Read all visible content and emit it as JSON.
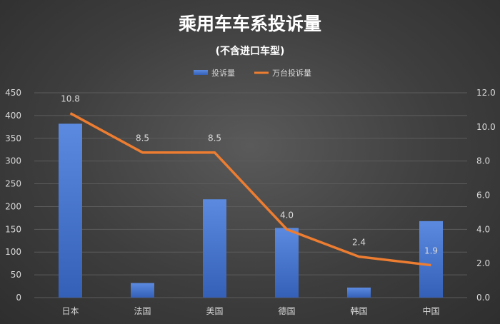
{
  "chart_data": {
    "type": "bar+line",
    "title": "乘用车车系投诉量",
    "subtitle": "(不含进口车型)",
    "categories": [
      "日本",
      "法国",
      "美国",
      "德国",
      "韩国",
      "中国"
    ],
    "series": [
      {
        "name": "投诉量",
        "type": "bar",
        "axis": "left",
        "color": "#4472c4",
        "values": [
          382,
          32,
          216,
          153,
          22,
          168
        ]
      },
      {
        "name": "万台投诉量",
        "type": "line",
        "axis": "right",
        "color": "#ed7d31",
        "values": [
          10.8,
          8.5,
          8.5,
          4.0,
          2.4,
          1.9
        ],
        "labels": [
          "10.8",
          "8.5",
          "8.5",
          "4.0",
          "2.4",
          "1.9"
        ]
      }
    ],
    "y_left": {
      "min": 0,
      "max": 450,
      "step": 50,
      "ticks": [
        "0",
        "50",
        "100",
        "150",
        "200",
        "250",
        "300",
        "350",
        "400",
        "450"
      ]
    },
    "y_right": {
      "min": 0,
      "max": 12,
      "step": 2,
      "ticks": [
        "0.0",
        "2.0",
        "4.0",
        "6.0",
        "8.0",
        "10.0",
        "12.0"
      ]
    },
    "grid": true,
    "legend_position": "top-center"
  }
}
